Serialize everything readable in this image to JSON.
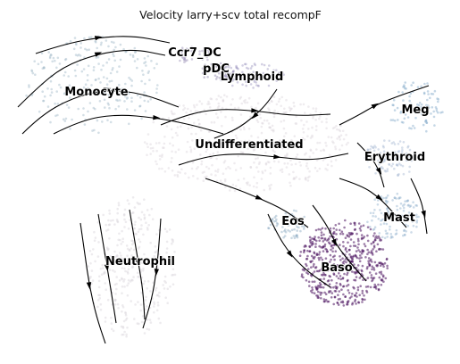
{
  "chart_data": {
    "type": "scatter",
    "title": "Velocity larry+scv total recompF",
    "xlabel": "",
    "ylabel": "",
    "grid": false,
    "legend": "on data",
    "overlay": "velocity streamlines with arrowheads",
    "clusters": [
      {
        "label": "Ccr7_DC",
        "color": "#9a8fb5"
      },
      {
        "label": "pDC",
        "color": "#8f86ad"
      },
      {
        "label": "Lymphoid",
        "color": "#9e97c2"
      },
      {
        "label": "Monocyte",
        "color": "#9fb8c8"
      },
      {
        "label": "Meg",
        "color": "#7fa7c8"
      },
      {
        "label": "Undifferentiated",
        "color": "#dcd4db"
      },
      {
        "label": "Erythroid",
        "color": "#a6b9d3"
      },
      {
        "label": "Eos",
        "color": "#8aa9c2"
      },
      {
        "label": "Mast",
        "color": "#8fb0cc"
      },
      {
        "label": "Neutrophil",
        "color": "#d7d2da"
      },
      {
        "label": "Baso",
        "color": "#4b125f"
      }
    ]
  }
}
